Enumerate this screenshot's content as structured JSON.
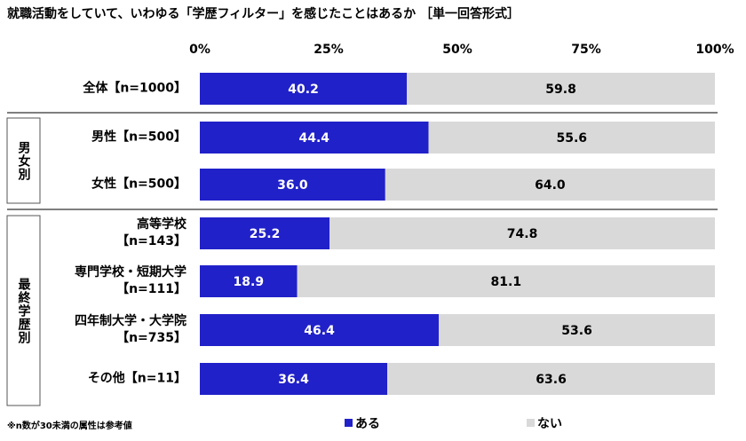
{
  "chart_data": {
    "type": "stacked-bar-horizontal",
    "title": "就職活動をしていて、いわゆる「学歴フィルター」を感じたことはあるか ［単一回答形式］",
    "categories": [
      "全体【n=1000】",
      "男性【n=500】",
      "女性【n=500】",
      "高等学校\n【n=143】",
      "専門学校・短期大学\n【n=111】",
      "四年制大学・大学院\n【n=735】",
      "その他【n=11】"
    ],
    "groups": [
      "男女別",
      "最終学歴別"
    ],
    "series": [
      {
        "name": "ある",
        "color": "#2121c9",
        "values": [
          40.2,
          44.4,
          36.0,
          25.2,
          18.9,
          46.4,
          36.4
        ],
        "value_labels": [
          "40.2",
          "44.4",
          "36.0",
          "25.2",
          "18.9",
          "46.4",
          "36.4"
        ]
      },
      {
        "name": "ない",
        "color": "#d9d9d9",
        "values": [
          59.8,
          55.6,
          64.0,
          74.8,
          81.1,
          53.6,
          63.6
        ],
        "value_labels": [
          "59.8",
          "55.6",
          "64.0",
          "74.8",
          "81.1",
          "53.6",
          "63.6"
        ]
      }
    ],
    "xlim": [
      0,
      100
    ],
    "xticks": [
      {
        "value": 0,
        "label": "0%"
      },
      {
        "value": 25,
        "label": "25%"
      },
      {
        "value": 50,
        "label": "50%"
      },
      {
        "value": 75,
        "label": "75%"
      },
      {
        "value": 100,
        "label": "100%"
      }
    ],
    "note": "※n数が30未満の属性は参考値"
  }
}
